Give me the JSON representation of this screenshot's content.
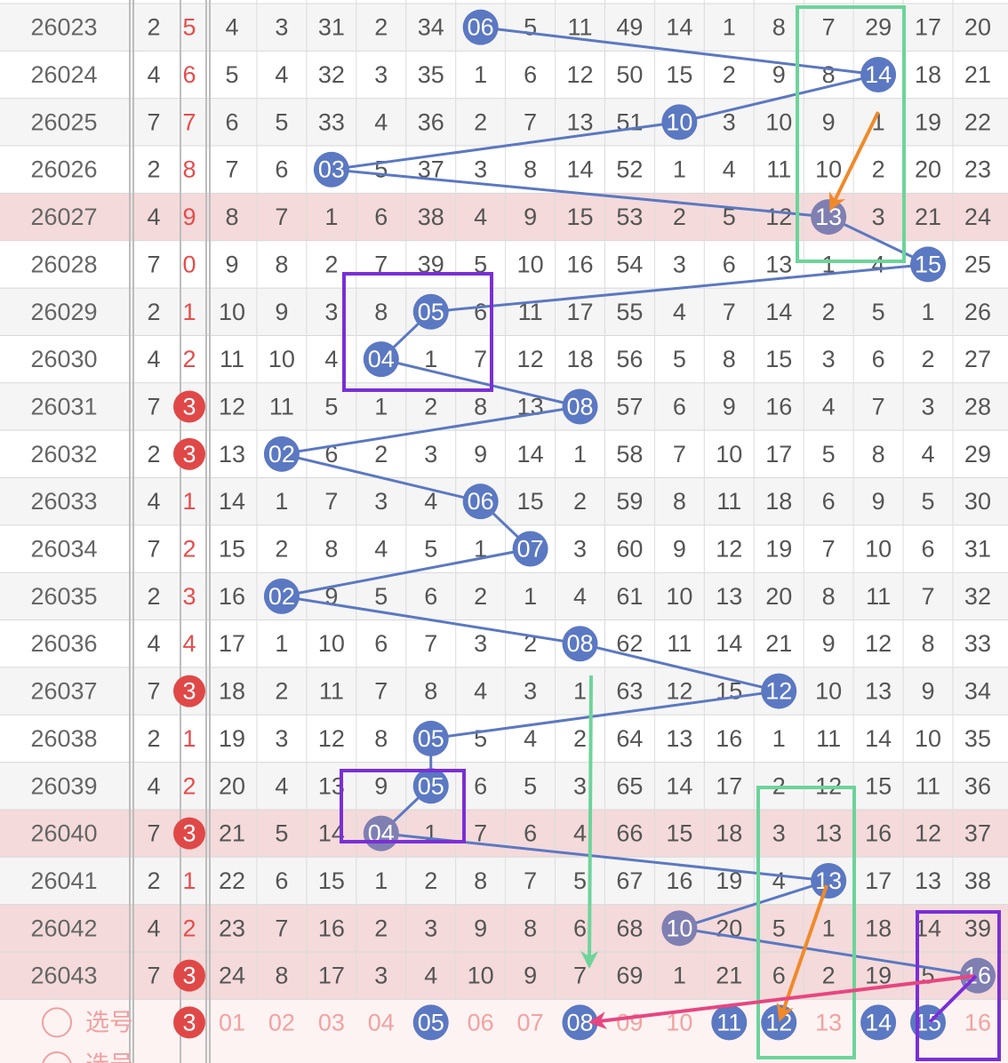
{
  "colors": {
    "ball": "#5b78c2",
    "ball_dim": "#7f7fb2",
    "red": "#e04848",
    "row_highlight": "#f4dada",
    "row_alt": "#f5f5f5",
    "green_box": "#6dd49a",
    "purple_box": "#7a2fd6",
    "orange_arrow": "#f0892a",
    "pink_arrow": "#e84580",
    "green_arrow": "#6dd49a"
  },
  "chart_data": {
    "type": "table",
    "columns": 19,
    "rows": [
      {
        "id": "26023",
        "c1": "2",
        "c2": "5",
        "cells": [
          "4",
          "3",
          "31",
          "2",
          "34",
          "06",
          "5",
          "11",
          "49",
          "14",
          "1",
          "8",
          "7",
          "29",
          "17",
          "20"
        ],
        "ball": 6,
        "hl": false
      },
      {
        "id": "26024",
        "c1": "4",
        "c2": "6",
        "cells": [
          "5",
          "4",
          "32",
          "3",
          "35",
          "1",
          "6",
          "12",
          "50",
          "15",
          "2",
          "9",
          "8",
          "14",
          "18",
          "21"
        ],
        "ball": 14,
        "hl": false
      },
      {
        "id": "26025",
        "c1": "7",
        "c2": "7",
        "cells": [
          "6",
          "5",
          "33",
          "4",
          "36",
          "2",
          "7",
          "13",
          "51",
          "10",
          "3",
          "10",
          "9",
          "1",
          "19",
          "22"
        ],
        "ball": 10,
        "hl": false
      },
      {
        "id": "26026",
        "c1": "2",
        "c2": "8",
        "cells": [
          "7",
          "6",
          "03",
          "5",
          "37",
          "3",
          "8",
          "14",
          "52",
          "1",
          "4",
          "11",
          "10",
          "2",
          "20",
          "23"
        ],
        "ball": 3,
        "hl": false
      },
      {
        "id": "26027",
        "c1": "4",
        "c2": "9",
        "cells": [
          "8",
          "7",
          "1",
          "6",
          "38",
          "4",
          "9",
          "15",
          "53",
          "2",
          "5",
          "12",
          "13",
          "3",
          "21",
          "24"
        ],
        "ball": 13,
        "hl": true
      },
      {
        "id": "26028",
        "c1": "7",
        "c2": "0",
        "cells": [
          "9",
          "8",
          "2",
          "7",
          "39",
          "5",
          "10",
          "16",
          "54",
          "3",
          "6",
          "13",
          "1",
          "4",
          "15",
          "25"
        ],
        "ball": 15,
        "hl": false
      },
      {
        "id": "26029",
        "c1": "2",
        "c2": "1",
        "cells": [
          "10",
          "9",
          "3",
          "8",
          "05",
          "6",
          "11",
          "17",
          "55",
          "4",
          "7",
          "14",
          "2",
          "5",
          "1",
          "26"
        ],
        "ball": 5,
        "hl": false
      },
      {
        "id": "26030",
        "c1": "4",
        "c2": "2",
        "cells": [
          "11",
          "10",
          "4",
          "04",
          "1",
          "7",
          "12",
          "18",
          "56",
          "5",
          "8",
          "15",
          "3",
          "6",
          "2",
          "27"
        ],
        "ball": 4,
        "hl": false
      },
      {
        "id": "26031",
        "c1": "7",
        "c2": "3",
        "cells": [
          "12",
          "11",
          "5",
          "1",
          "2",
          "8",
          "13",
          "08",
          "57",
          "6",
          "9",
          "16",
          "4",
          "7",
          "3",
          "28"
        ],
        "ball": 8,
        "hl": false
      },
      {
        "id": "26032",
        "c1": "2",
        "c2": "3",
        "cells": [
          "13",
          "02",
          "6",
          "2",
          "3",
          "9",
          "14",
          "1",
          "58",
          "7",
          "10",
          "17",
          "5",
          "8",
          "4",
          "29"
        ],
        "ball": 2,
        "hl": false
      },
      {
        "id": "26033",
        "c1": "4",
        "c2": "1",
        "cells": [
          "14",
          "1",
          "7",
          "3",
          "4",
          "06",
          "15",
          "2",
          "59",
          "8",
          "11",
          "18",
          "6",
          "9",
          "5",
          "30"
        ],
        "ball": 6,
        "hl": false
      },
      {
        "id": "26034",
        "c1": "7",
        "c2": "2",
        "cells": [
          "15",
          "2",
          "8",
          "4",
          "5",
          "1",
          "07",
          "3",
          "60",
          "9",
          "12",
          "19",
          "7",
          "10",
          "6",
          "31"
        ],
        "ball": 7,
        "hl": false
      },
      {
        "id": "26035",
        "c1": "2",
        "c2": "3",
        "cells": [
          "16",
          "02",
          "9",
          "5",
          "6",
          "2",
          "1",
          "4",
          "61",
          "10",
          "13",
          "20",
          "8",
          "11",
          "7",
          "32"
        ],
        "ball": 2,
        "hl": false
      },
      {
        "id": "26036",
        "c1": "4",
        "c2": "4",
        "cells": [
          "17",
          "1",
          "10",
          "6",
          "7",
          "3",
          "2",
          "08",
          "62",
          "11",
          "14",
          "21",
          "9",
          "12",
          "8",
          "33"
        ],
        "ball": 8,
        "hl": false
      },
      {
        "id": "26037",
        "c1": "7",
        "c2": "3",
        "cells": [
          "18",
          "2",
          "11",
          "7",
          "8",
          "4",
          "3",
          "1",
          "63",
          "12",
          "15",
          "12",
          "10",
          "13",
          "9",
          "34"
        ],
        "ball": 12,
        "hl": false
      },
      {
        "id": "26038",
        "c1": "2",
        "c2": "1",
        "cells": [
          "19",
          "3",
          "12",
          "8",
          "05",
          "5",
          "4",
          "2",
          "64",
          "13",
          "16",
          "1",
          "11",
          "14",
          "10",
          "35"
        ],
        "ball": 5,
        "hl": false
      },
      {
        "id": "26039",
        "c1": "4",
        "c2": "2",
        "cells": [
          "20",
          "4",
          "13",
          "9",
          "05",
          "6",
          "5",
          "3",
          "65",
          "14",
          "17",
          "2",
          "12",
          "15",
          "11",
          "36"
        ],
        "ball": 5,
        "hl": false
      },
      {
        "id": "26040",
        "c1": "7",
        "c2": "3",
        "cells": [
          "21",
          "5",
          "14",
          "04",
          "1",
          "7",
          "6",
          "4",
          "66",
          "15",
          "18",
          "3",
          "13",
          "16",
          "12",
          "37"
        ],
        "ball": 4,
        "hl": true
      },
      {
        "id": "26041",
        "c1": "2",
        "c2": "1",
        "cells": [
          "22",
          "6",
          "15",
          "1",
          "2",
          "8",
          "7",
          "5",
          "67",
          "16",
          "19",
          "4",
          "13",
          "17",
          "13",
          "38"
        ],
        "ball": 13,
        "hl": false
      },
      {
        "id": "26042",
        "c1": "4",
        "c2": "2",
        "cells": [
          "23",
          "7",
          "16",
          "2",
          "3",
          "9",
          "8",
          "6",
          "68",
          "10",
          "20",
          "5",
          "1",
          "18",
          "14",
          "39"
        ],
        "ball": 10,
        "hl": true
      },
      {
        "id": "26043",
        "c1": "7",
        "c2": "3",
        "cells": [
          "24",
          "8",
          "17",
          "3",
          "4",
          "10",
          "9",
          "7",
          "69",
          "1",
          "21",
          "6",
          "2",
          "19",
          "5",
          "16"
        ],
        "ball": 16,
        "hl": true
      }
    ],
    "pick_row": {
      "label": "选号",
      "c2": "3",
      "numbers": [
        "01",
        "02",
        "03",
        "04",
        "05",
        "06",
        "07",
        "08",
        "09",
        "10",
        "11",
        "12",
        "13",
        "14",
        "15",
        "16"
      ],
      "selected": [
        5,
        8,
        11,
        12,
        14,
        15
      ]
    },
    "partial_row_label": "选号"
  }
}
